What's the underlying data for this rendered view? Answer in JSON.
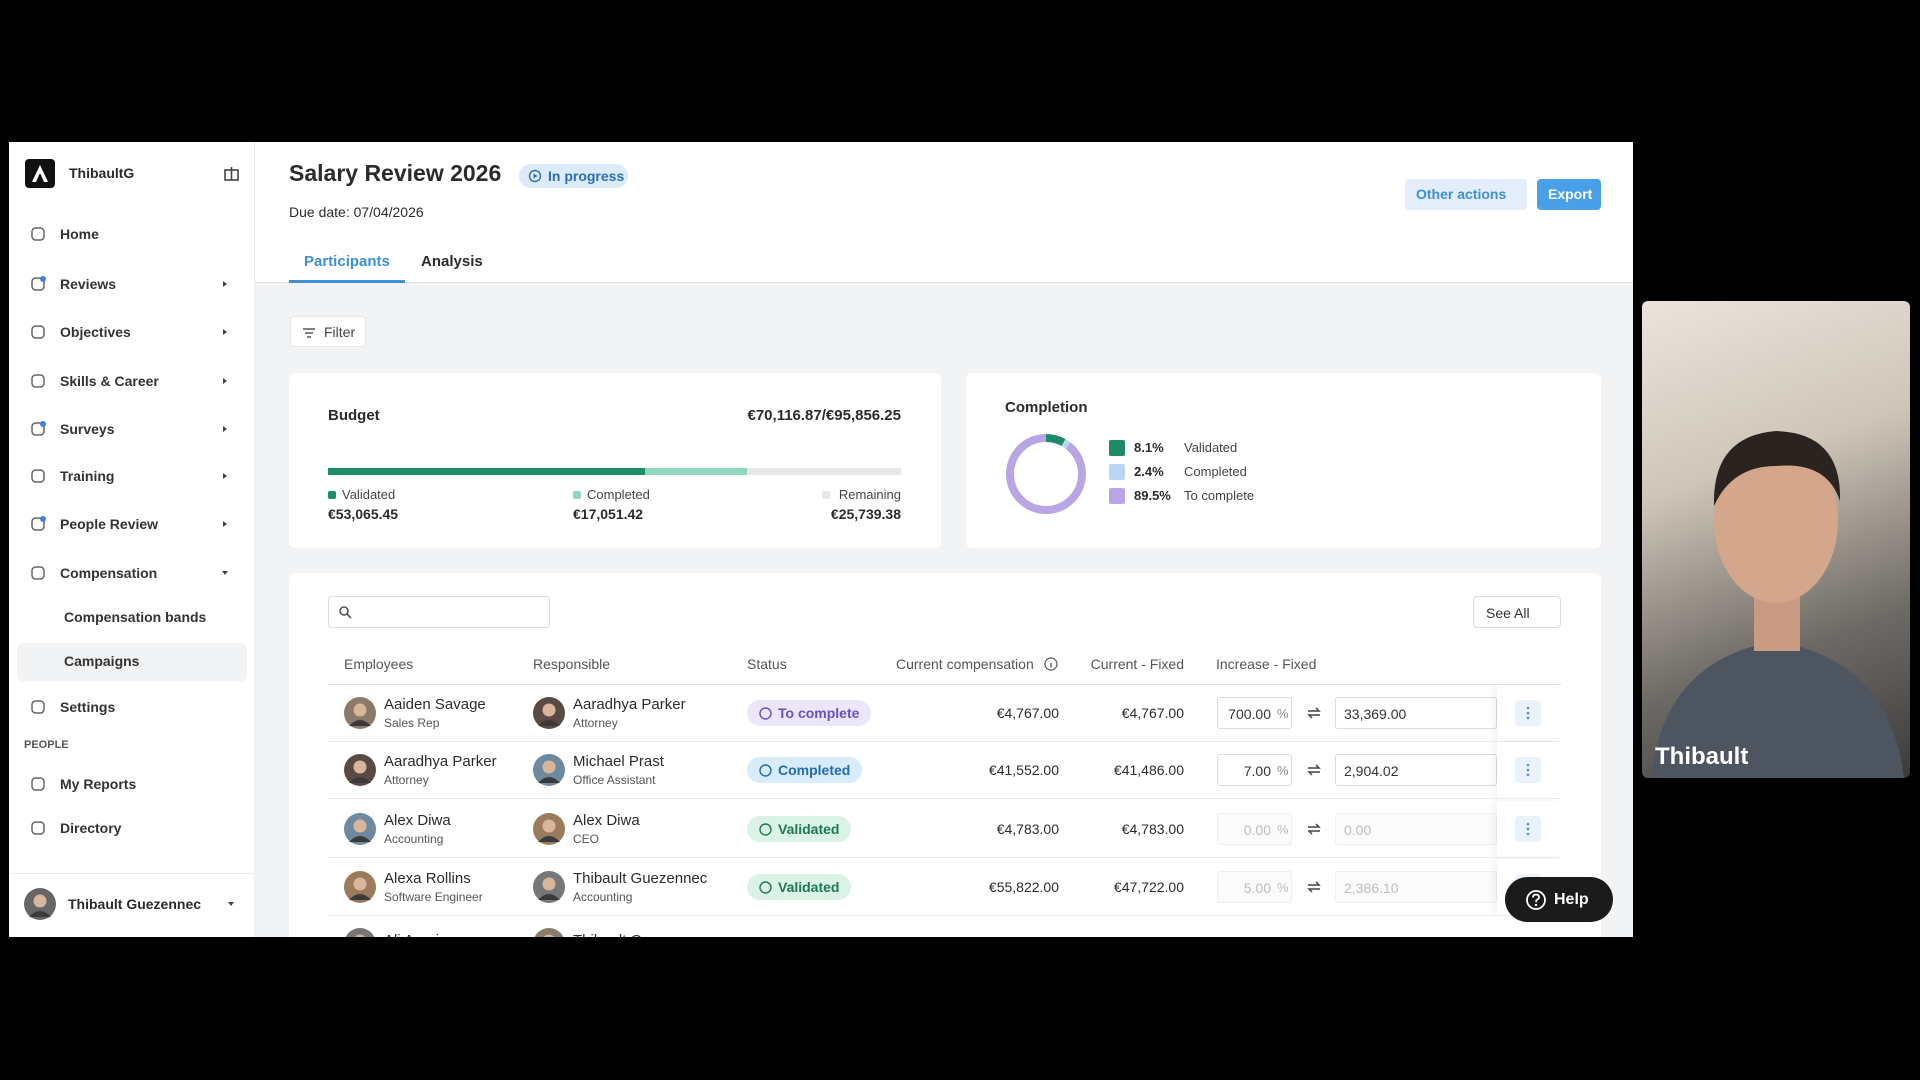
{
  "sidebar": {
    "workspace": "ThibaultG",
    "nav": [
      "Home",
      "Reviews",
      "Objectives",
      "Skills & Career",
      "Surveys",
      "Training",
      "People Review",
      "Compensation"
    ],
    "sub_nav": [
      "Compensation bands",
      "Campaigns"
    ],
    "settings": "Settings",
    "section": "PEOPLE",
    "people_nav": [
      "My Reports",
      "Directory"
    ],
    "user": "Thibault Guezennec"
  },
  "header": {
    "title": "Salary Review 2026",
    "status": "In progress",
    "due_date": "Due date: 07/04/2026",
    "other_actions": "Other actions",
    "export": "Export",
    "tabs": [
      "Participants",
      "Analysis"
    ],
    "filter": "Filter"
  },
  "budget": {
    "title": "Budget",
    "summary": "€70,116.87/€95,856.25",
    "total": 95856.25,
    "segments": [
      {
        "name": "Validated",
        "amount": 53065.45,
        "label": "€53,065.45",
        "color": "#1d8a68"
      },
      {
        "name": "Completed",
        "amount": 17051.42,
        "label": "€17,051.42",
        "color": "#8fd8bd"
      },
      {
        "name": "Remaining",
        "amount": 25739.38,
        "label": "€25,739.38",
        "color": "#e6e7e9"
      }
    ]
  },
  "completion": {
    "title": "Completion",
    "items": [
      {
        "name": "Validated",
        "value": 8.1,
        "value_label": "8.1%",
        "color": "#1d8a68"
      },
      {
        "name": "Completed",
        "value": 2.4,
        "value_label": "2.4%",
        "color": "#b9d6f2"
      },
      {
        "name": "To complete",
        "value": 89.5,
        "value_label": "89.5%",
        "color": "#b8a5e4"
      }
    ]
  },
  "table": {
    "see_all": "See All",
    "columns": [
      "Employees",
      "Responsible",
      "Status",
      "Current compensation",
      "Current - Fixed",
      "Increase - Fixed"
    ],
    "unit": "%",
    "rows": [
      {
        "employee": "Aaiden Savage",
        "employee_role": "Sales Rep",
        "responsible": "Aaradhya Parker",
        "responsible_role": "Attorney",
        "status": "To complete",
        "current_compensation": "€4,767.00",
        "current_fixed": "€4,767.00",
        "increase_percent": "700.00",
        "increase_amount": "33,369.00"
      },
      {
        "employee": "Aaradhya Parker",
        "employee_role": "Attorney",
        "responsible": "Michael Prast",
        "responsible_role": "Office Assistant",
        "status": "Completed",
        "current_compensation": "€41,552.00",
        "current_fixed": "€41,486.00",
        "increase_percent": "7.00",
        "increase_amount": "2,904.02"
      },
      {
        "employee": "Alex Diwa",
        "employee_role": "Accounting",
        "responsible": "Alex Diwa",
        "responsible_role": "CEO",
        "status": "Validated",
        "current_compensation": "€4,783.00",
        "current_fixed": "€4,783.00",
        "increase_percent": "0.00",
        "increase_amount": "0.00"
      },
      {
        "employee": "Alexa Rollins",
        "employee_role": "Software Engineer",
        "responsible": "Thibault Guezennec",
        "responsible_role": "Accounting",
        "status": "Validated",
        "current_compensation": "€55,822.00",
        "current_fixed": "€47,722.00",
        "increase_percent": "5.00",
        "increase_amount": "2,386.10"
      },
      {
        "employee": "Ali Anari",
        "responsible": "Thibault Guezennec"
      }
    ]
  },
  "help": "Help",
  "webcam": {
    "name": "Thibault"
  }
}
